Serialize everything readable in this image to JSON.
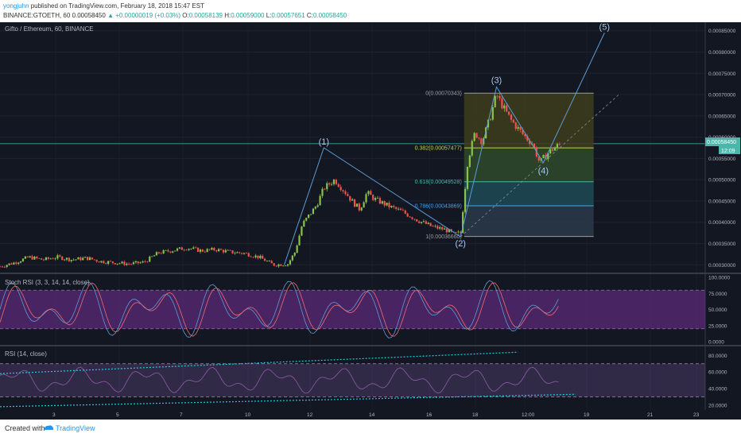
{
  "header": {
    "author": "yongjuhn",
    "published_text": " published on TradingView.com, February 18, 2018 15:47 EST",
    "symbol": "BINANCE:GTOETH, 60",
    "last": "0.00058450",
    "change": "▲ +0.00000019 (+0.03%)",
    "o_label": "O:",
    "o": "0.00058139",
    "h_label": "H:",
    "h": "0.00059000",
    "l_label": "L:",
    "l": "0.00057651",
    "c_label": "C:",
    "c": "0.00058450"
  },
  "main_pane": {
    "title": "Gifto / Ethereum, 60, BINANCE",
    "price_label": "0.00058450",
    "countdown": "12:09"
  },
  "stoch_pane": {
    "title": "Stoch RSI (3, 3, 14, 14, close)"
  },
  "rsi_pane": {
    "title": "RSI (14, close)"
  },
  "footer": {
    "created": "Created with",
    "brand": "TradingView"
  },
  "colors": {
    "background": "#131722",
    "candle_up": "#8bc34a",
    "candle_down": "#ef5350",
    "wave_line": "#5b9bd5",
    "stoch_fill": "#5c2a7a",
    "rsi_band": "#6a4c8c",
    "teal_trend": "#26c6da",
    "price_line": "#4db6ac"
  },
  "chart_data": [
    {
      "type": "line",
      "pane": "price",
      "y_ticks": [
        "0.00085000",
        "0.00080000",
        "0.00075000",
        "0.00070000",
        "0.00065000",
        "0.00060000",
        "0.00055000",
        "0.00050000",
        "0.00045000",
        "0.00040000",
        "0.00035000",
        "0.00030000"
      ],
      "x_ticks": [
        "3",
        "5",
        "7",
        "10",
        "12",
        "14",
        "16",
        "18",
        "12:00",
        "19",
        "21",
        "23",
        "12:00"
      ],
      "ylim": [
        0.00028,
        0.00087
      ],
      "price_path": [
        [
          0.0,
          0.000296
        ],
        [
          2.0,
          0.000305
        ],
        [
          4.0,
          0.000318
        ],
        [
          6.0,
          0.000312
        ],
        [
          8.0,
          0.000318
        ],
        [
          10.0,
          0.000312
        ],
        [
          12.0,
          0.000316
        ],
        [
          14.0,
          0.000308
        ],
        [
          16.0,
          0.000305
        ],
        [
          18.0,
          0.000302
        ],
        [
          20.0,
          0.000306
        ],
        [
          22.0,
          0.000328
        ],
        [
          24.0,
          0.000334
        ],
        [
          26.0,
          0.00034
        ],
        [
          28.0,
          0.000333
        ],
        [
          30.0,
          0.000336
        ],
        [
          32.0,
          0.00033
        ],
        [
          34.0,
          0.000327
        ],
        [
          36.0,
          0.000318
        ],
        [
          38.0,
          0.0003
        ],
        [
          40.0,
          0.000302
        ],
        [
          41.0,
          0.00033
        ],
        [
          42.0,
          0.000395
        ],
        [
          44.0,
          0.00044
        ],
        [
          45.0,
          0.00048
        ],
        [
          46.5,
          0.0005
        ],
        [
          48.0,
          0.00047
        ],
        [
          49.0,
          0.000448
        ],
        [
          50.0,
          0.00043
        ],
        [
          51.0,
          0.00047
        ],
        [
          52.0,
          0.000455
        ],
        [
          54.0,
          0.000438
        ],
        [
          56.0,
          0.000424
        ],
        [
          58.0,
          0.000405
        ],
        [
          60.0,
          0.00039
        ],
        [
          62.0,
          0.000382
        ],
        [
          63.0,
          0.000372
        ],
        [
          64.0,
          0.000375
        ],
        [
          65.0,
          0.000545
        ],
        [
          66.0,
          0.00061
        ],
        [
          67.0,
          0.00059
        ],
        [
          68.0,
          0.00064
        ],
        [
          69.0,
          0.0007
        ],
        [
          70.0,
          0.000668
        ],
        [
          71.0,
          0.00064
        ],
        [
          72.0,
          0.00062
        ],
        [
          73.0,
          0.0006
        ],
        [
          74.0,
          0.000585
        ],
        [
          75.0,
          0.00054
        ],
        [
          76.0,
          0.00056
        ],
        [
          77.0,
          0.000575
        ],
        [
          78.0,
          0.000585
        ]
      ],
      "elliott_waves": [
        {
          "label": "(1)",
          "x": 45.0,
          "y": 0.000575
        },
        {
          "label": "(2)",
          "x": 64.0,
          "y": 0.000366
        },
        {
          "label": "(3)",
          "x": 69.0,
          "y": 0.000718
        },
        {
          "label": "(4)",
          "x": 75.5,
          "y": 0.00054
        },
        {
          "label": "(5)",
          "x": 84.0,
          "y": 0.000845
        }
      ],
      "fib_levels": [
        {
          "label": "0(0.00070343)",
          "value": 0.00070343
        },
        {
          "label": "0.382(0.00057477)",
          "value": 0.00057477
        },
        {
          "label": "0.618(0.00049528)",
          "value": 0.00049528
        },
        {
          "label": "0.786(0.00043869)",
          "value": 0.00043869
        },
        {
          "label": "1(0.00036660)",
          "value": 0.0003666
        }
      ],
      "last_price": 0.0005845
    },
    {
      "type": "line",
      "pane": "stoch_rsi",
      "y_ticks": [
        "100.0000",
        "75.0000",
        "50.0000",
        "25.0000",
        "0.0000"
      ],
      "ylim": [
        0,
        100
      ],
      "bands": [
        80,
        20
      ]
    },
    {
      "type": "line",
      "pane": "rsi",
      "y_ticks": [
        "80.0000",
        "60.0000",
        "40.0000",
        "20.0000"
      ],
      "ylim": [
        15,
        90
      ],
      "bands": [
        70,
        30
      ]
    }
  ]
}
